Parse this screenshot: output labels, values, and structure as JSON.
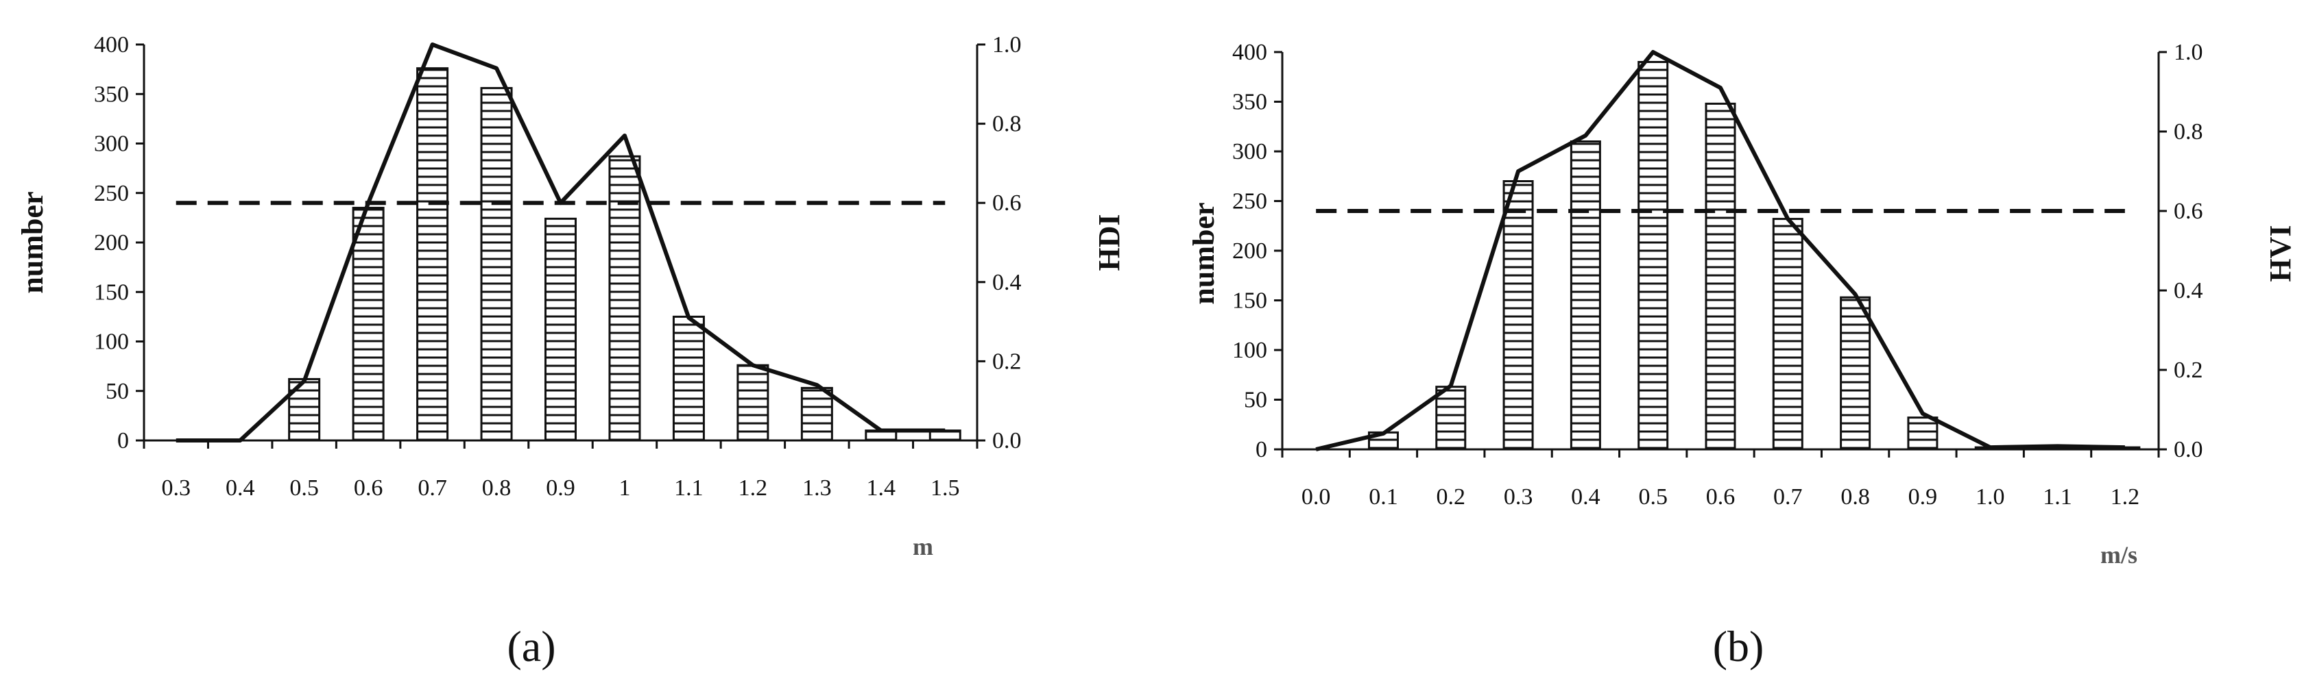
{
  "chart_data": [
    {
      "type": "bar",
      "panel_label": "(a)",
      "categories": [
        "0.3",
        "0.4",
        "0.5",
        "0.6",
        "0.7",
        "0.8",
        "0.9",
        "1",
        "1.1",
        "1.2",
        "1.3",
        "1.4",
        "1.5"
      ],
      "series": [
        {
          "values": [
            0,
            0,
            62,
            235,
            376,
            356,
            224,
            287,
            125,
            76,
            53,
            10,
            10
          ]
        },
        {
          "type": "line",
          "values": [
            0,
            0,
            0.15,
            0.6,
            1.0,
            0.94,
            0.6,
            0.77,
            0.31,
            0.19,
            0.14,
            0.025,
            0.025
          ]
        },
        {
          "type": "line",
          "style": "dashed",
          "values": [
            0.6,
            0.6,
            0.6,
            0.6,
            0.6,
            0.6,
            0.6,
            0.6,
            0.6,
            0.6,
            0.6,
            0.6,
            0.6
          ]
        }
      ],
      "ylabel": "number",
      "y2label": "HDI",
      "xlabel": "m",
      "ylim": [
        0,
        400
      ],
      "y2lim": [
        0,
        1.0
      ],
      "yticks": [
        "0",
        "50",
        "100",
        "150",
        "200",
        "250",
        "300",
        "350",
        "400"
      ],
      "y2ticks": [
        "0.0",
        "0.2",
        "0.4",
        "0.6",
        "0.8",
        "1.0"
      ],
      "grid": false,
      "legend": "none",
      "bar_fill": "horizontal-hatch"
    },
    {
      "type": "bar",
      "panel_label": "(b)",
      "categories": [
        "0.0",
        "0.1",
        "0.2",
        "0.3",
        "0.4",
        "0.5",
        "0.6",
        "0.7",
        "0.8",
        "0.9",
        "1.0",
        "1.1",
        "1.2"
      ],
      "series": [
        {
          "values": [
            0,
            17,
            63,
            270,
            310,
            390,
            348,
            232,
            153,
            32,
            2,
            2,
            2
          ]
        },
        {
          "type": "line",
          "values": [
            0,
            0.04,
            0.16,
            0.7,
            0.79,
            1.0,
            0.91,
            0.58,
            0.39,
            0.09,
            0.005,
            0.008,
            0.005
          ]
        },
        {
          "type": "line",
          "style": "dashed",
          "values": [
            0.6,
            0.6,
            0.6,
            0.6,
            0.6,
            0.6,
            0.6,
            0.6,
            0.6,
            0.6,
            0.6,
            0.6,
            0.6
          ]
        }
      ],
      "ylabel": "number",
      "y2label": "HVI",
      "xlabel": "m/s",
      "ylim": [
        0,
        400
      ],
      "y2lim": [
        0,
        1.0
      ],
      "yticks": [
        "0",
        "50",
        "100",
        "150",
        "200",
        "250",
        "300",
        "350",
        "400"
      ],
      "y2ticks": [
        "0.0",
        "0.2",
        "0.4",
        "0.6",
        "0.8",
        "1.0"
      ],
      "grid": false,
      "legend": "none",
      "bar_fill": "horizontal-hatch"
    }
  ],
  "colors": {
    "ink": "#111111",
    "unit": "#555555",
    "background": "#ffffff"
  }
}
